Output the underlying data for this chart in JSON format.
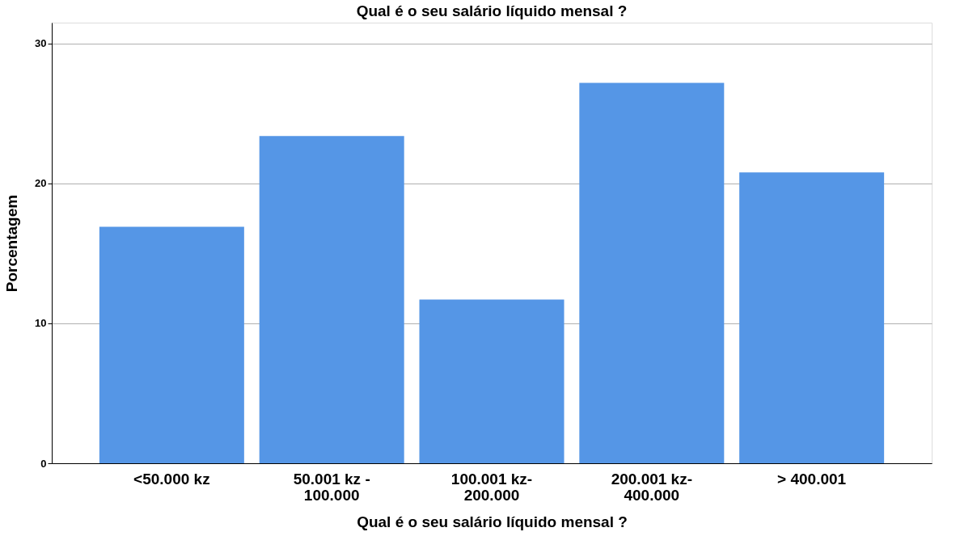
{
  "chart_data": {
    "type": "bar",
    "title": "Qual é o seu salário líquido mensal ?",
    "xlabel": "Qual é o seu salário líquido mensal ?",
    "ylabel": "Porcentagem",
    "categories": [
      "<50.000 kz",
      "50.001 kz - 100.000",
      "100.001 kz-200.000",
      "200.001 kz-400.000",
      "> 400.001"
    ],
    "values": [
      16.9,
      23.4,
      11.7,
      27.2,
      20.8
    ],
    "color": "#5596e6",
    "ylim": [
      0,
      31.5
    ],
    "yticks": [
      0,
      10,
      20,
      30
    ],
    "grid": "y"
  }
}
